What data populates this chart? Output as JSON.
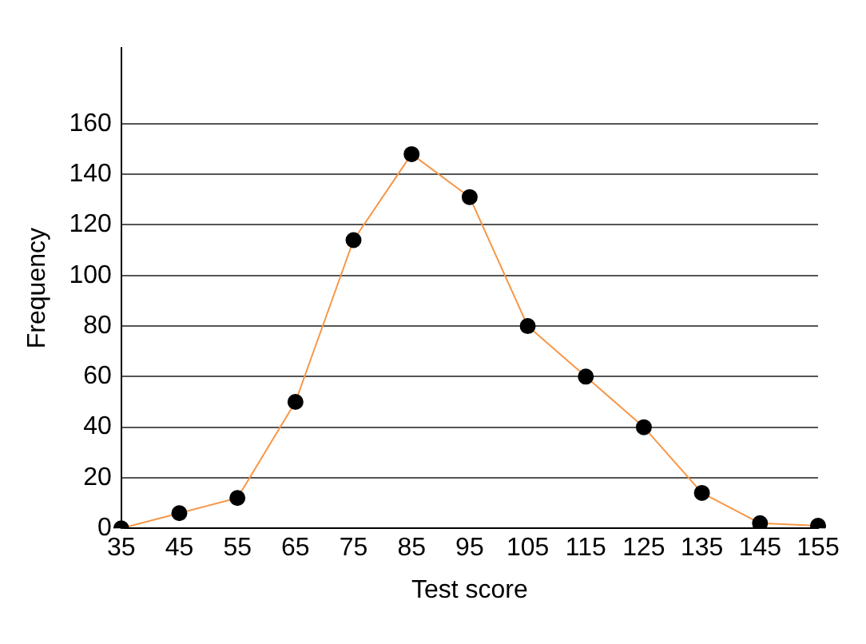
{
  "chart_data": {
    "type": "line",
    "xlabel": "Test score",
    "ylabel": "Frequency",
    "categories": [
      "35",
      "45",
      "55",
      "65",
      "75",
      "85",
      "95",
      "105",
      "115",
      "125",
      "135",
      "145",
      "155"
    ],
    "series": [
      {
        "color": "#f79646",
        "values": [
          0,
          6,
          12,
          50,
          114,
          148,
          131,
          80,
          60,
          40,
          14,
          2,
          1
        ]
      }
    ],
    "ylim": [
      0,
      190
    ],
    "yticks": [
      0,
      20,
      40,
      60,
      80,
      100,
      120,
      140,
      160
    ],
    "grid": "y",
    "legend": false,
    "marker": "circle",
    "line_style": "solid"
  }
}
